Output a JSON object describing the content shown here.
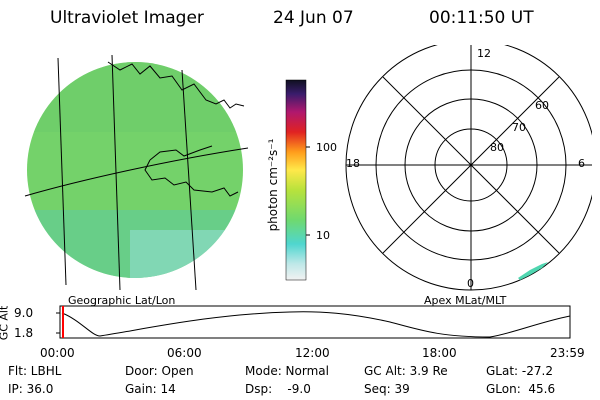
{
  "header": {
    "instrument": "Ultraviolet Imager",
    "date": "24 Jun 07",
    "time": "00:11:50 UT"
  },
  "colorbar": {
    "unit_label": "photon cm⁻²s⁻¹",
    "ticks": [
      "100",
      "10"
    ]
  },
  "left_panel": {
    "label": "Geographic Lat/Lon"
  },
  "right_panel": {
    "label": "Apex MLat/MLT",
    "hour_labels": [
      "12",
      "18",
      "6",
      "0"
    ],
    "lat_labels": [
      "60",
      "70",
      "80"
    ]
  },
  "altitude_strip": {
    "axis_label": "GC Alt",
    "y_ticks": [
      "9.0",
      "1.8"
    ],
    "x_ticks": [
      "00:00",
      "06:00",
      "12:00",
      "18:00",
      "23:59"
    ]
  },
  "info": {
    "row1": {
      "flt": "Flt: LBHL",
      "door": "Door: Open",
      "mode": "Mode: Normal",
      "gc_alt": "GC Alt: 3.9 Re",
      "glat": "GLat: -27.2"
    },
    "row2": {
      "ip": "IP: 36.0",
      "gain": "Gain: 14",
      "dsp": "Dsp:    -9.0",
      "seq": "Seq: 39",
      "glon": "GLon:  45.6"
    }
  },
  "colors": {
    "image_fill": "#74d26a",
    "grid": "#000000",
    "time_marker": "#ff0000"
  }
}
